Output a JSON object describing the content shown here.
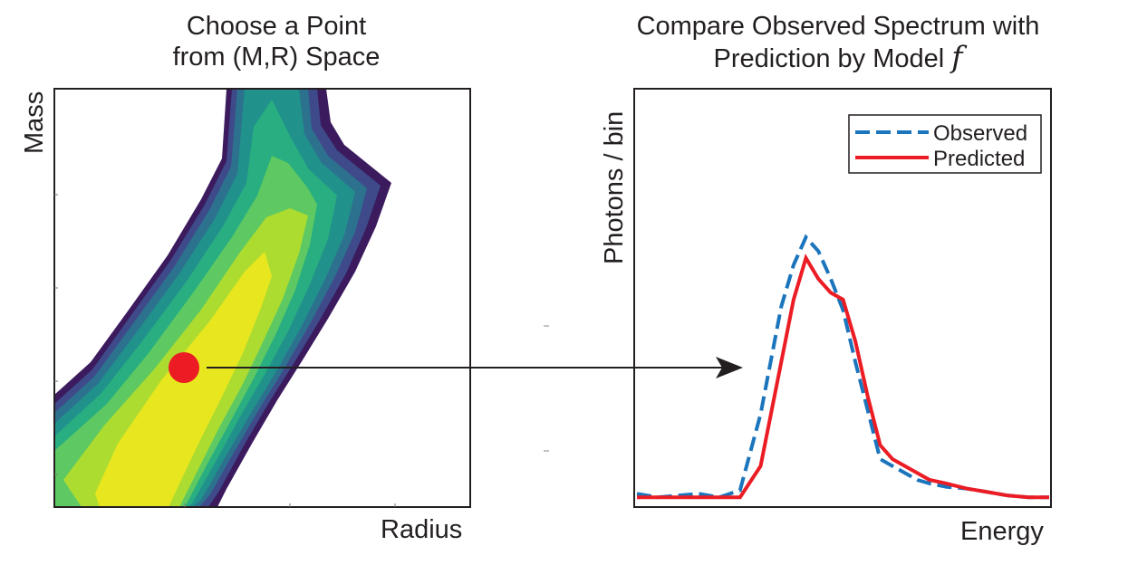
{
  "left_panel": {
    "title_line1": "Choose a Point",
    "title_line2": "from (M,R) Space",
    "y_label": "Mass",
    "x_label": "Radius",
    "marker_color": "#ec1c24"
  },
  "right_panel": {
    "title_line1": "Compare Observed Spectrum with",
    "title_line2": "Prediction by Model",
    "model_symbol": "f",
    "y_label": "Photons / bin",
    "x_label": "Energy"
  },
  "legend": {
    "observed": "Observed",
    "predicted": "Predicted"
  },
  "colors": {
    "observed": "#1b75bc",
    "predicted": "#ec1c24",
    "contour_low": "#3b1b5e",
    "contour_high": "#e8e61e"
  },
  "chart_data": {
    "type": "line",
    "xlabel": "Energy",
    "ylabel": "Photons / bin",
    "legend_position": "top-right",
    "grid": false,
    "x": [
      0,
      5,
      10,
      15,
      20,
      25,
      30,
      35,
      38,
      41,
      44,
      47,
      50,
      53,
      56,
      59,
      62,
      65,
      68,
      71,
      75,
      80,
      85,
      90,
      95,
      100
    ],
    "series": [
      {
        "name": "Observed",
        "values": [
          0.02,
          0.01,
          0.015,
          0.02,
          0.01,
          0.03,
          0.25,
          0.56,
          0.68,
          0.76,
          0.72,
          0.64,
          0.55,
          0.4,
          0.26,
          0.12,
          0.1,
          0.08,
          0.06,
          0.05,
          0.04,
          0.035,
          0.025,
          0.015,
          0.01,
          0.01
        ]
      },
      {
        "name": "Predicted",
        "values": [
          0.01,
          0.01,
          0.01,
          0.01,
          0.01,
          0.01,
          0.1,
          0.4,
          0.58,
          0.7,
          0.64,
          0.6,
          0.58,
          0.46,
          0.3,
          0.16,
          0.12,
          0.1,
          0.08,
          0.06,
          0.05,
          0.035,
          0.025,
          0.015,
          0.01,
          0.01
        ]
      }
    ]
  }
}
